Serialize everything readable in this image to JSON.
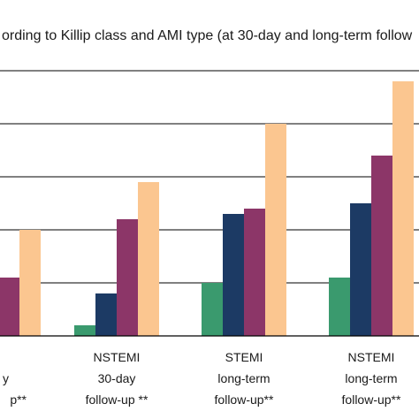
{
  "chart_data": {
    "type": "bar",
    "title": "ording to Killip class and AMI type (at 30-day and long-term follow",
    "categories": [
      [
        "",
        "y",
        "p**"
      ],
      [
        "NSTEMI",
        "30-day",
        "follow-up **"
      ],
      [
        "STEMI",
        "long-term",
        "follow-up**"
      ],
      [
        "NSTEMI",
        "long-term",
        "follow-up**"
      ]
    ],
    "series": [
      {
        "color": "#3a9a6e",
        "values": [
          null,
          2,
          10,
          11
        ]
      },
      {
        "color": "#1c3a64",
        "values": [
          null,
          8,
          23,
          25
        ]
      },
      {
        "color": "#8c3668",
        "values": [
          11,
          22,
          24,
          34
        ]
      },
      {
        "color": "#fbc690",
        "values": [
          20,
          29,
          40,
          48
        ]
      }
    ],
    "ylim": [
      0,
      50
    ],
    "grid": true,
    "legend": "none"
  }
}
